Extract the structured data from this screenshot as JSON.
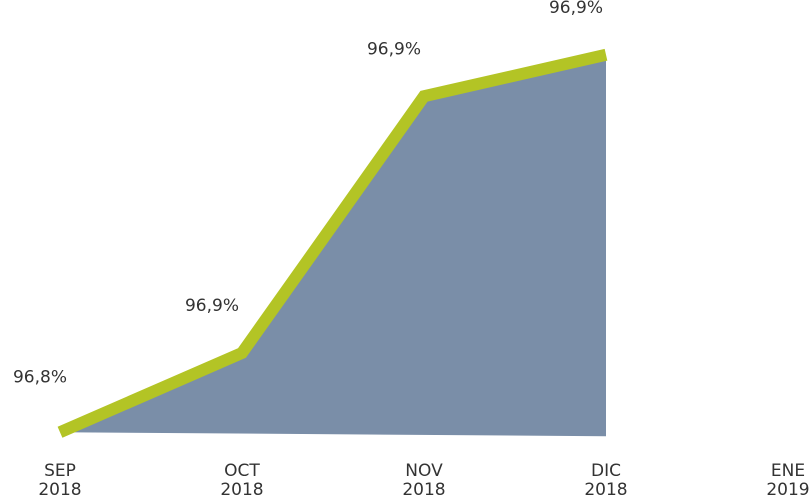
{
  "chart_data": {
    "type": "area",
    "categories": [
      "SEP 2018",
      "OCT 2018",
      "NOV 2018",
      "DIC 2018",
      "ENE 2019"
    ],
    "series": [
      {
        "values": [
          96.84,
          96.861,
          96.929,
          96.94,
          null
        ],
        "value_labels": [
          "96,8%",
          "96,9%",
          "96,9%",
          "96,9%",
          null
        ],
        "color": "#b3c425",
        "fill": "#7a8ea8"
      }
    ],
    "ylim": [
      96.83,
      96.95
    ]
  }
}
